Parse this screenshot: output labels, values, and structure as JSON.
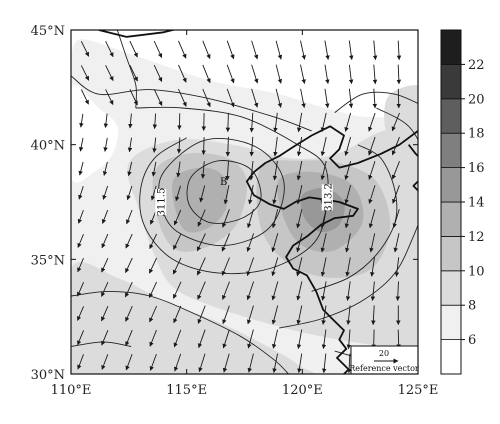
{
  "map": {
    "lon_range": [
      110,
      125
    ],
    "lat_range": [
      30,
      45
    ],
    "lon_ticks": [
      {
        "value": 110,
        "label": "110°E"
      },
      {
        "value": 115,
        "label": "115°E"
      },
      {
        "value": 120,
        "label": "120°E"
      },
      {
        "value": 125,
        "label": "125°E"
      }
    ],
    "lat_ticks": [
      {
        "value": 30,
        "label": "30°N"
      },
      {
        "value": 35,
        "label": "35°N"
      },
      {
        "value": 40,
        "label": "40°N"
      },
      {
        "value": 45,
        "label": "45°N"
      }
    ],
    "contour_labels": [
      {
        "text": "311.5",
        "lon": 113.9,
        "lat": 37.5,
        "rotate": -90
      },
      {
        "text": "313.2",
        "lon": 121.1,
        "lat": 37.7,
        "rotate": -90
      },
      {
        "text": "B",
        "lon": 116.6,
        "lat": 38.4,
        "rotate": 0
      }
    ],
    "reference_vector": {
      "value": "20",
      "caption": "Reference vector"
    },
    "colors": {
      "coastline": "#111111",
      "contour": "#222222",
      "arrow": "#1a1a1a"
    }
  },
  "colorbar": {
    "levels": [
      "6",
      "8",
      "10",
      "12",
      "14",
      "16",
      "18",
      "20",
      "22"
    ],
    "fills": [
      "#ffffff",
      "#f0f0f0",
      "#dcdcdc",
      "#c6c6c6",
      "#b0b0b0",
      "#989898",
      "#7f7f7f",
      "#5e5e5e",
      "#3a3a3a",
      "#1e1e1e"
    ]
  }
}
